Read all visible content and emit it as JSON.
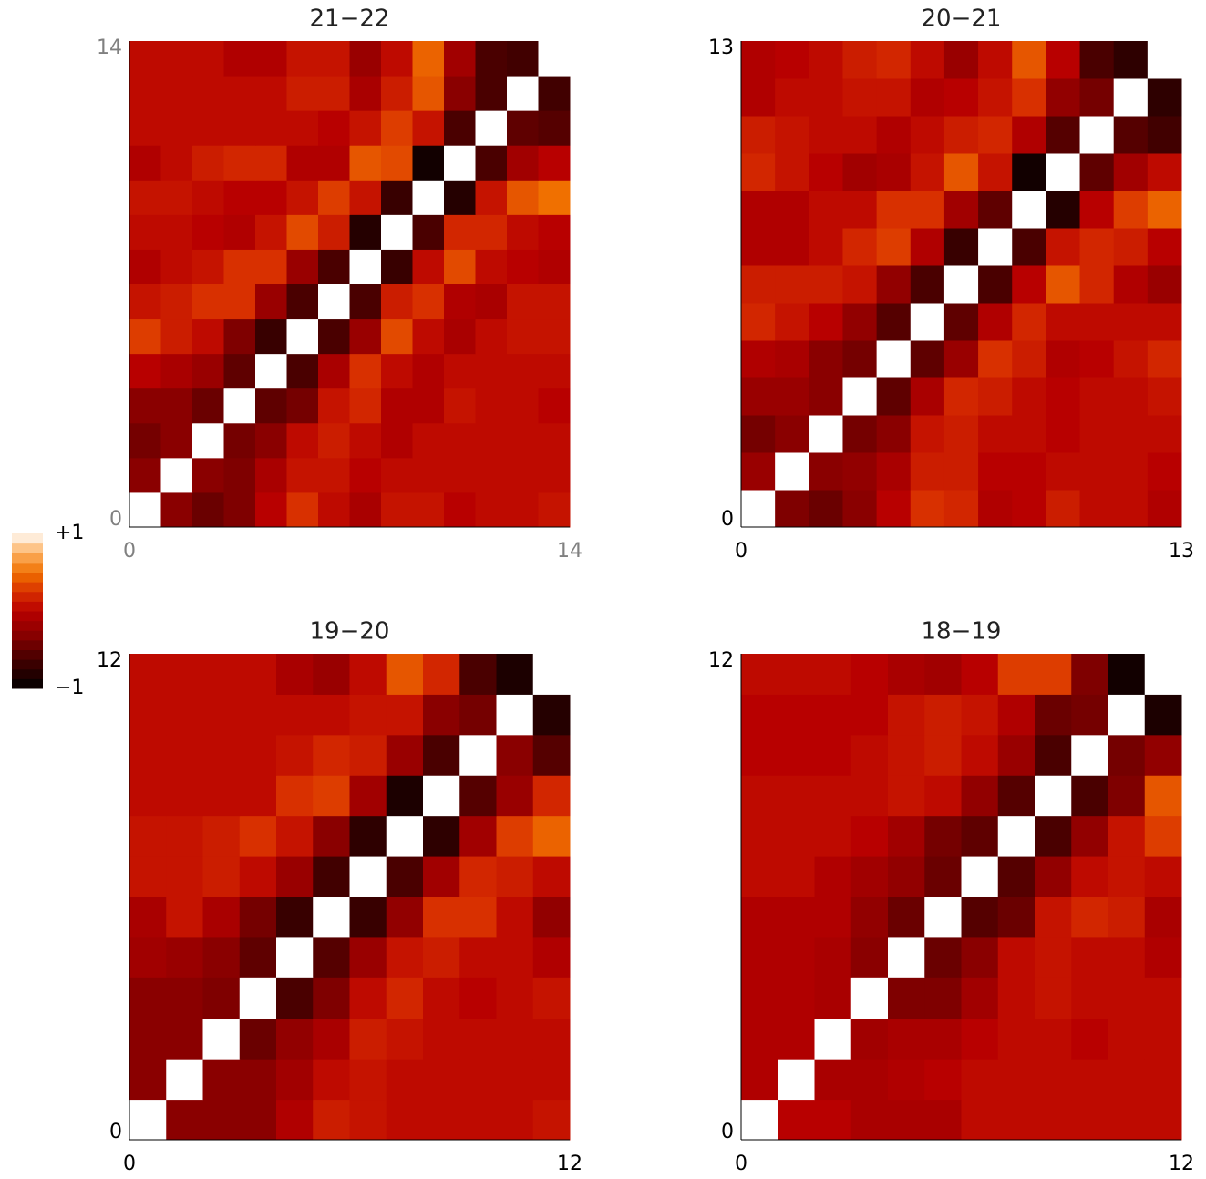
{
  "colorbar": {
    "ticks": [
      {
        "value": 1,
        "label": "+1"
      },
      {
        "value": -1,
        "label": "−1"
      }
    ],
    "steps": 16,
    "colormap": [
      {
        "value": -1,
        "color": "#000000"
      },
      {
        "value": -0.6,
        "color": "#4a0000"
      },
      {
        "value": -0.3,
        "color": "#8a0000"
      },
      {
        "value": 0,
        "color": "#b80000"
      },
      {
        "value": 0.25,
        "color": "#d83000"
      },
      {
        "value": 0.5,
        "color": "#f07000"
      },
      {
        "value": 0.75,
        "color": "#fcb060"
      },
      {
        "value": 1,
        "color": "#ffffff"
      }
    ]
  },
  "chart_data": [
    {
      "type": "heatmap",
      "title": "21−22",
      "tick_color": "#808080",
      "xlim": [
        0,
        14
      ],
      "ylim": [
        0,
        14
      ],
      "xticks": [
        0,
        14
      ],
      "yticks": [
        0,
        14
      ],
      "z": [
        [
          1,
          -0.3,
          -0.45,
          -0.35,
          0,
          0.25,
          0.05,
          -0.1,
          0.1,
          0.1,
          0,
          0.05,
          0.05,
          0.1
        ],
        [
          -0.3,
          1,
          -0.3,
          -0.35,
          -0.1,
          0.1,
          0.1,
          0,
          0.05,
          0.05,
          0.05,
          0.05,
          0.05,
          0.05
        ],
        [
          -0.4,
          -0.3,
          1,
          -0.4,
          -0.3,
          0.05,
          0.15,
          0.05,
          -0.05,
          0.05,
          0.05,
          0.05,
          0.05,
          0.05
        ],
        [
          -0.3,
          -0.3,
          -0.45,
          1,
          -0.5,
          -0.4,
          0.1,
          0.2,
          -0.05,
          -0.05,
          0.1,
          0.05,
          0.05,
          0
        ],
        [
          0,
          -0.1,
          -0.2,
          -0.5,
          1,
          -0.6,
          -0.1,
          0.25,
          0.05,
          -0.05,
          0.05,
          0.05,
          0.05,
          0.05
        ],
        [
          0.3,
          0.15,
          0.05,
          -0.35,
          -0.7,
          1,
          -0.6,
          -0.2,
          0.35,
          0.05,
          -0.1,
          0.05,
          0.1,
          0.1
        ],
        [
          0.1,
          0.15,
          0.25,
          0.25,
          -0.2,
          -0.6,
          1,
          -0.6,
          0.15,
          0.25,
          -0.05,
          -0.1,
          0.1,
          0.1
        ],
        [
          -0.05,
          0.05,
          0.1,
          0.25,
          0.25,
          -0.2,
          -0.6,
          1,
          -0.7,
          0.05,
          0.35,
          0.05,
          0,
          -0.05
        ],
        [
          0.05,
          0.05,
          0,
          -0.05,
          0.1,
          0.35,
          0.15,
          -0.8,
          1,
          -0.6,
          0.2,
          0.2,
          0.05,
          0
        ],
        [
          0.1,
          0.1,
          0.05,
          0,
          0,
          0.1,
          0.3,
          0.1,
          -0.7,
          1,
          -0.8,
          0.1,
          0.4,
          0.5
        ],
        [
          -0.05,
          0.05,
          0.15,
          0.2,
          0.2,
          -0.05,
          -0.05,
          0.4,
          0.35,
          -0.9,
          1,
          -0.6,
          -0.15,
          0
        ],
        [
          0.05,
          0.05,
          0.05,
          0.05,
          0.05,
          0.05,
          0,
          0.1,
          0.3,
          0.1,
          -0.6,
          1,
          -0.5,
          -0.55
        ],
        [
          0.05,
          0.05,
          0.05,
          0.05,
          0.05,
          0.15,
          0.15,
          -0.1,
          0.15,
          0.4,
          -0.3,
          -0.6,
          1,
          -0.65
        ],
        [
          0.05,
          0.05,
          0.05,
          -0.05,
          -0.05,
          0.1,
          0.1,
          -0.2,
          0.05,
          0.45,
          -0.15,
          -0.6,
          -0.65,
          1
        ]
      ]
    },
    {
      "type": "heatmap",
      "title": "20−21",
      "tick_color": "#000000",
      "xlim": [
        0,
        13
      ],
      "ylim": [
        0,
        13
      ],
      "xticks": [
        0,
        13
      ],
      "yticks": [
        0,
        13
      ],
      "z": [
        [
          1,
          -0.35,
          -0.45,
          -0.3,
          0,
          0.25,
          0.2,
          -0.05,
          0,
          0.15,
          0.05,
          0.05,
          -0.05
        ],
        [
          -0.2,
          1,
          -0.3,
          -0.25,
          -0.1,
          0.15,
          0.15,
          0,
          0,
          0.05,
          0.05,
          0.05,
          0
        ],
        [
          -0.4,
          -0.3,
          1,
          -0.4,
          -0.3,
          0.1,
          0.15,
          0.05,
          0.05,
          0,
          0.05,
          0.05,
          0.05
        ],
        [
          -0.2,
          -0.2,
          -0.3,
          1,
          -0.5,
          -0.1,
          0.2,
          0.15,
          0.05,
          0,
          0.05,
          0.05,
          0.1
        ],
        [
          -0.05,
          -0.1,
          -0.3,
          -0.4,
          1,
          -0.5,
          -0.2,
          0.25,
          0.15,
          -0.05,
          0,
          0.1,
          0.2
        ],
        [
          0.2,
          0.1,
          0,
          -0.25,
          -0.55,
          1,
          -0.5,
          -0.05,
          0.2,
          0.05,
          0.05,
          0.05,
          0.05
        ],
        [
          0.15,
          0.15,
          0.15,
          0.1,
          -0.25,
          -0.6,
          1,
          -0.6,
          0,
          0.4,
          0.2,
          -0.05,
          -0.2
        ],
        [
          -0.05,
          -0.05,
          0.05,
          0.2,
          0.3,
          -0.05,
          -0.7,
          1,
          -0.6,
          0.1,
          0.2,
          0.15,
          0
        ],
        [
          -0.05,
          -0.05,
          0.05,
          0.05,
          0.25,
          0.25,
          -0.15,
          -0.5,
          1,
          -0.8,
          0,
          0.3,
          0.45
        ],
        [
          0.2,
          0.1,
          0,
          -0.15,
          -0.1,
          0.1,
          0.4,
          0.1,
          -0.9,
          1,
          -0.5,
          -0.15,
          0.05
        ],
        [
          0.15,
          0.1,
          0.05,
          0.05,
          -0.05,
          0.05,
          0.15,
          0.2,
          -0.05,
          -0.55,
          1,
          -0.55,
          -0.65
        ],
        [
          -0.05,
          0.05,
          0.05,
          0.1,
          0.1,
          -0.05,
          0,
          0.1,
          0.25,
          -0.25,
          -0.4,
          1,
          -0.75
        ],
        [
          -0.05,
          0,
          0.05,
          0.15,
          0.2,
          0.05,
          -0.2,
          0.05,
          0.4,
          0,
          -0.6,
          -0.75,
          1
        ]
      ]
    },
    {
      "type": "heatmap",
      "title": "19−20",
      "tick_color": "#000000",
      "xlim": [
        0,
        12
      ],
      "ylim": [
        0,
        12
      ],
      "xticks": [
        0,
        12
      ],
      "yticks": [
        0,
        12
      ],
      "z": [
        [
          1,
          -0.3,
          -0.3,
          -0.3,
          -0.05,
          0.15,
          0.1,
          0.05,
          0.05,
          0.05,
          0.05,
          0.1
        ],
        [
          -0.3,
          1,
          -0.3,
          -0.3,
          -0.15,
          0.05,
          0.1,
          0.05,
          0.05,
          0.05,
          0.05,
          0.05
        ],
        [
          -0.3,
          -0.3,
          1,
          -0.45,
          -0.25,
          -0.1,
          0.15,
          0.1,
          0.05,
          0.05,
          0.05,
          0.05
        ],
        [
          -0.3,
          -0.3,
          -0.35,
          1,
          -0.6,
          -0.35,
          0.05,
          0.2,
          0.05,
          0,
          0.05,
          0.1
        ],
        [
          -0.15,
          -0.2,
          -0.3,
          -0.5,
          1,
          -0.55,
          -0.2,
          0.1,
          0.15,
          0.05,
          0.05,
          -0.05
        ],
        [
          -0.1,
          0.1,
          -0.1,
          -0.4,
          -0.7,
          1,
          -0.7,
          -0.25,
          0.25,
          0.25,
          0.05,
          -0.25
        ],
        [
          0.1,
          0.1,
          0.15,
          0.05,
          -0.2,
          -0.65,
          1,
          -0.6,
          -0.15,
          0.2,
          0.15,
          0.05
        ],
        [
          0.1,
          0.1,
          0.15,
          0.25,
          0.1,
          -0.3,
          -0.75,
          1,
          -0.75,
          -0.15,
          0.3,
          0.45
        ],
        [
          0.05,
          0.05,
          0.05,
          0.05,
          0.25,
          0.3,
          -0.15,
          -0.85,
          1,
          -0.55,
          -0.2,
          0.2
        ],
        [
          0.05,
          0.05,
          0.05,
          0.05,
          0.1,
          0.2,
          0.15,
          -0.2,
          -0.6,
          1,
          -0.3,
          -0.55
        ],
        [
          0.05,
          0.05,
          0.05,
          0.05,
          0.05,
          0.05,
          0.1,
          0.1,
          -0.3,
          -0.4,
          1,
          -0.8
        ],
        [
          0.05,
          0.05,
          0.05,
          0.05,
          -0.1,
          -0.2,
          0.05,
          0.4,
          0.2,
          -0.6,
          -0.85,
          1
        ]
      ]
    },
    {
      "type": "heatmap",
      "title": "18−19",
      "tick_color": "#000000",
      "xlim": [
        0,
        12
      ],
      "ylim": [
        0,
        12
      ],
      "xticks": [
        0,
        12
      ],
      "yticks": [
        0,
        12
      ],
      "z": [
        [
          1,
          0,
          0,
          -0.1,
          -0.1,
          -0.1,
          0.05,
          0.05,
          0.05,
          0.05,
          0.05,
          0.05
        ],
        [
          -0.05,
          1,
          -0.1,
          -0.1,
          -0.05,
          0,
          0.05,
          0.05,
          0.05,
          0.05,
          0.05,
          0.05
        ],
        [
          -0.05,
          -0.05,
          1,
          -0.15,
          -0.1,
          -0.1,
          0,
          0.05,
          0.05,
          0,
          0.05,
          0.05
        ],
        [
          -0.05,
          -0.05,
          -0.1,
          1,
          -0.35,
          -0.35,
          -0.15,
          0.05,
          0.1,
          0.05,
          0.05,
          0.05
        ],
        [
          -0.05,
          -0.05,
          -0.1,
          -0.3,
          1,
          -0.45,
          -0.3,
          0.05,
          0.1,
          0.05,
          0.05,
          -0.05
        ],
        [
          -0.05,
          -0.05,
          -0.05,
          -0.25,
          -0.45,
          1,
          -0.55,
          -0.45,
          0.1,
          0.2,
          0.15,
          -0.1
        ],
        [
          0.05,
          0.05,
          -0.05,
          -0.15,
          -0.25,
          -0.45,
          1,
          -0.55,
          -0.25,
          0.05,
          0.1,
          0.05
        ],
        [
          0.05,
          0.05,
          0.05,
          0,
          -0.15,
          -0.4,
          -0.5,
          1,
          -0.6,
          -0.25,
          0.1,
          0.3
        ],
        [
          0.05,
          0.05,
          0.05,
          0.05,
          0.1,
          0.05,
          -0.25,
          -0.55,
          1,
          -0.6,
          -0.35,
          0.4
        ],
        [
          0,
          0,
          0,
          0.05,
          0.1,
          0.15,
          0.05,
          -0.2,
          -0.6,
          1,
          -0.4,
          -0.25
        ],
        [
          0,
          0,
          0,
          0,
          0.1,
          0.15,
          0.1,
          -0.05,
          -0.45,
          -0.4,
          1,
          -0.85
        ],
        [
          0.05,
          0.05,
          0.05,
          0,
          -0.1,
          -0.15,
          0,
          0.3,
          0.3,
          -0.35,
          -0.9,
          1
        ]
      ]
    }
  ]
}
